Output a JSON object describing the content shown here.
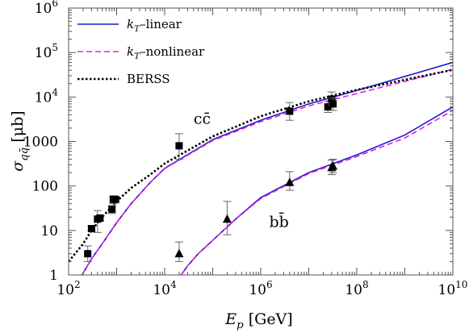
{
  "chart_data": {
    "type": "line",
    "xlabel": "E_p [GeV]",
    "ylabel": "σ_qq̄ [μb]",
    "xscale": "log",
    "yscale": "log",
    "xlim": [
      100,
      10000000000
    ],
    "ylim": [
      1,
      1000000
    ],
    "x_ticks": [
      {
        "value": 100,
        "base": "10",
        "exp": "2"
      },
      {
        "value": 10000,
        "base": "10",
        "exp": "4"
      },
      {
        "value": 1000000,
        "base": "10",
        "exp": "6"
      },
      {
        "value": 100000000,
        "base": "10",
        "exp": "8"
      },
      {
        "value": 10000000000,
        "base": "10",
        "exp": "10"
      }
    ],
    "y_ticks": [
      {
        "value": 1,
        "base": "1",
        "exp": ""
      },
      {
        "value": 10,
        "base": "10",
        "exp": ""
      },
      {
        "value": 100,
        "base": "100",
        "exp": ""
      },
      {
        "value": 1000,
        "base": "1000",
        "exp": ""
      },
      {
        "value": 10000,
        "base": "10",
        "exp": "4"
      },
      {
        "value": 100000,
        "base": "10",
        "exp": "5"
      },
      {
        "value": 1000000,
        "base": "10",
        "exp": "6"
      }
    ],
    "legend": {
      "placement": "top-left",
      "entries": [
        {
          "label": "k_T–linear",
          "color": "#1a1acc",
          "style": "solid"
        },
        {
          "label": "k_T–nonlinear",
          "color": "#e020e0",
          "style": "dashed"
        },
        {
          "label": "BERSS",
          "color": "#000000",
          "style": "dotted"
        }
      ]
    },
    "annotations": [
      {
        "text": "cc̄",
        "x": 40000,
        "y": 2500
      },
      {
        "text": "bb̄",
        "x": 1500000,
        "y": 12
      }
    ],
    "series": [
      {
        "name": "k_T–linear",
        "group": "charm",
        "color": "#1a1acc",
        "style": "solid",
        "x": [
          190,
          300,
          500,
          1000,
          2000,
          5000,
          10000,
          100000,
          1000000,
          10000000,
          100000000,
          10000000000
        ],
        "y": [
          1,
          2.3,
          5,
          15,
          40,
          120,
          250,
          1100,
          3000,
          7000,
          14000,
          60000
        ]
      },
      {
        "name": "k_T–nonlinear",
        "group": "charm",
        "color": "#e020e0",
        "style": "dashed",
        "x": [
          190,
          300,
          500,
          1000,
          2000,
          5000,
          10000,
          100000,
          1000000,
          10000000,
          100000000,
          10000000000
        ],
        "y": [
          1,
          2.3,
          5,
          15,
          40,
          120,
          245,
          1050,
          2800,
          6300,
          12000,
          42000
        ]
      },
      {
        "name": "BERSS",
        "group": "charm",
        "color": "#000000",
        "style": "dotted",
        "x": [
          100,
          200,
          300,
          500,
          1000,
          2000,
          5000,
          10000,
          100000,
          1000000,
          10000000,
          100000000,
          10000000000
        ],
        "y": [
          2,
          5,
          10,
          20,
          45,
          90,
          180,
          320,
          1300,
          3700,
          8000,
          14500,
          41000
        ]
      },
      {
        "name": "k_T–linear",
        "group": "bottom",
        "color": "#1a1acc",
        "style": "solid",
        "x": [
          22000,
          30000,
          50000,
          100000,
          300000,
          1000000,
          10000000,
          100000000,
          1000000000,
          10000000000
        ],
        "y": [
          1,
          1.6,
          3,
          6,
          18,
          55,
          200,
          500,
          1400,
          6000
        ]
      },
      {
        "name": "k_T–nonlinear",
        "group": "bottom",
        "color": "#e020e0",
        "style": "dashed",
        "x": [
          22000,
          30000,
          50000,
          100000,
          300000,
          1000000,
          10000000,
          100000000,
          1000000000,
          10000000000
        ],
        "y": [
          1,
          1.6,
          3,
          6,
          18,
          52,
          190,
          460,
          1200,
          5000
        ]
      }
    ],
    "data_points": {
      "charm": {
        "marker": "square",
        "color": "#000000",
        "points": [
          {
            "x": 250,
            "y": 3,
            "ylo": 2,
            "yhi": 4.5
          },
          {
            "x": 300,
            "y": 11,
            "ylo": 10,
            "yhi": 12.5
          },
          {
            "x": 400,
            "y": 18,
            "ylo": 9,
            "yhi": 28
          },
          {
            "x": 450,
            "y": 19,
            "ylo": 16,
            "yhi": 22
          },
          {
            "x": 800,
            "y": 30,
            "ylo": 24,
            "yhi": 36
          },
          {
            "x": 850,
            "y": 50,
            "ylo": 40,
            "yhi": 60
          },
          {
            "x": 950,
            "y": 50,
            "ylo": 44,
            "yhi": 56
          },
          {
            "x": 20000,
            "y": 800,
            "ylo": 400,
            "yhi": 1500
          },
          {
            "x": 4000000,
            "y": 4800,
            "ylo": 3000,
            "yhi": 7500
          },
          {
            "x": 25000000,
            "y": 6000,
            "ylo": 4500,
            "yhi": 8000
          },
          {
            "x": 30000000,
            "y": 9000,
            "ylo": 6500,
            "yhi": 13000
          },
          {
            "x": 32000000,
            "y": 7000,
            "ylo": 5000,
            "yhi": 9500
          }
        ]
      },
      "bottom": {
        "marker": "triangle",
        "color": "#000000",
        "points": [
          {
            "x": 20000,
            "y": 3,
            "ylo": 2,
            "yhi": 5.5
          },
          {
            "x": 200000,
            "y": 18,
            "ylo": 8,
            "yhi": 45
          },
          {
            "x": 4000000,
            "y": 120,
            "ylo": 80,
            "yhi": 210
          },
          {
            "x": 30000000,
            "y": 260,
            "ylo": 180,
            "yhi": 380
          },
          {
            "x": 32000000,
            "y": 280,
            "ylo": 200,
            "yhi": 400
          }
        ]
      }
    }
  }
}
